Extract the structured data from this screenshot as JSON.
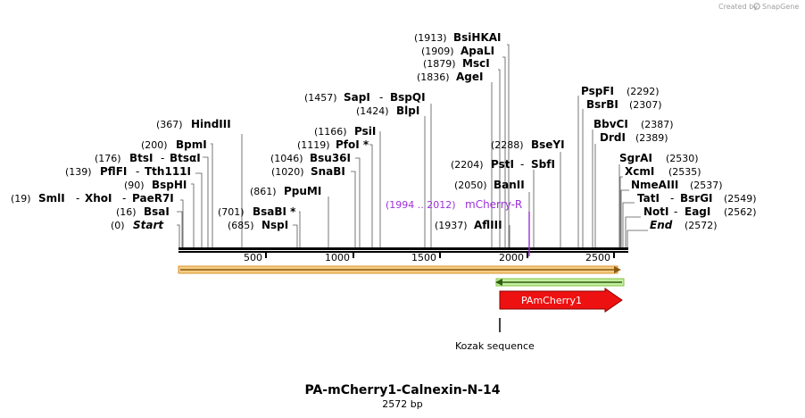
{
  "credit": "Created by",
  "credit_brand": "SnapGene",
  "title": "PA-mCherry1-Calnexin-N-14",
  "length_label": "2572 bp",
  "ruler_ticks": [
    "500",
    "1000",
    "1500",
    "2000",
    "2500"
  ],
  "site_labels": {
    "start": {
      "pos": "(0)",
      "name": "Start"
    },
    "bsai": {
      "pos": "(16)",
      "name": "BsaI"
    },
    "smli": {
      "pos": "(19)",
      "name": "SmlI",
      "sep1": "-",
      "name2": "XhoI",
      "sep2": "-",
      "name3": "PaeR7I"
    },
    "bsphi": {
      "pos": "(90)",
      "name": "BspHI"
    },
    "pflfi": {
      "pos": "(139)",
      "name": "PflFI",
      "sep1": "-",
      "name2": "Tth111I"
    },
    "btsi": {
      "pos": "(176)",
      "name": "BtsI",
      "sep1": "-",
      "name2": "BtsαI"
    },
    "bpmi": {
      "pos": "(200)",
      "name": "BpmI"
    },
    "hindiii": {
      "pos": "(367)",
      "name": "HindIII"
    },
    "nspi": {
      "pos": "(685)",
      "name": "NspI"
    },
    "bsabi": {
      "pos": "(701)",
      "name": "BsaBI *"
    },
    "ppumi": {
      "pos": "(861)",
      "name": "PpuMI"
    },
    "snabi": {
      "pos": "(1020)",
      "name": "SnaBI"
    },
    "bsu36i": {
      "pos": "(1046)",
      "name": "Bsu36I"
    },
    "pfoi": {
      "pos": "(1119)",
      "name": "PfoI *"
    },
    "psii": {
      "pos": "(1166)",
      "name": "PsiI"
    },
    "blpi": {
      "pos": "(1424)",
      "name": "BlpI"
    },
    "sapi": {
      "pos": "(1457)",
      "name": "SapI",
      "sep1": "-",
      "name2": "BspQI"
    },
    "agei": {
      "pos": "(1836)",
      "name": "AgeI"
    },
    "msci": {
      "pos": "(1879)",
      "name": "MscI"
    },
    "apali": {
      "pos": "(1909)",
      "name": "ApaLI"
    },
    "bsihkai": {
      "pos": "(1913)",
      "name": "BsiHKAI"
    },
    "aflIII": {
      "pos": "(1937)",
      "name": "AflIII"
    },
    "banii": {
      "pos": "(2050)",
      "name": "BanII"
    },
    "psti": {
      "pos": "(2204)",
      "name": "PstI",
      "sep1": "-",
      "name2": "SbfI"
    },
    "bseyi": {
      "pos": "(2288)",
      "name": "BseYI"
    },
    "pspfi": {
      "pos": "(2292)",
      "name": "PspFI"
    },
    "bsrbi": {
      "pos": "(2307)",
      "name": "BsrBI"
    },
    "bbvci": {
      "pos": "(2387)",
      "name": "BbvCI"
    },
    "drdi": {
      "pos": "(2389)",
      "name": "DrdI"
    },
    "sgrai": {
      "pos": "(2530)",
      "name": "SgrAI"
    },
    "xcmi": {
      "pos": "(2535)",
      "name": "XcmI"
    },
    "nmeaiii": {
      "pos": "(2537)",
      "name": "NmeAIII"
    },
    "tati": {
      "pos": "(2549)",
      "name": "TatI",
      "sep1": "-",
      "name2": "BsrGI"
    },
    "noti": {
      "pos": "(2562)",
      "name": "NotI",
      "sep1": "-",
      "name2": "EagI"
    },
    "end": {
      "pos": "(2572)",
      "name": "End"
    }
  },
  "primer": {
    "range": "(1994 .. 2012)",
    "name": "mCherry-R",
    "color": "#9b30d9"
  },
  "features": {
    "pamcherry_label": "PAmCherry1",
    "pamcherry_color": "#ee1111",
    "orf_top_color": "#e8a23a",
    "orf_bottom_color": "#7bc43a",
    "kozak_label": "Kozak sequence"
  }
}
